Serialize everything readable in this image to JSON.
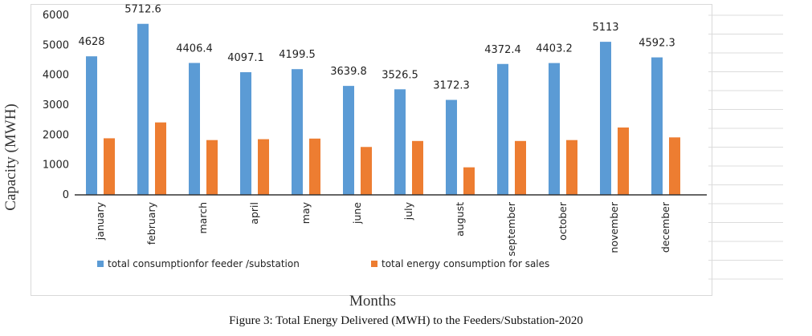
{
  "chart_data": {
    "type": "bar",
    "categories": [
      "january",
      "february",
      "march",
      "april",
      "may",
      "june",
      "july",
      "august",
      "september",
      "october",
      "november",
      "december"
    ],
    "series": [
      {
        "name": "total consumptionfor feeder /substation",
        "values": [
          4628,
          5712.6,
          4406.4,
          4097.1,
          4199.5,
          3639.8,
          3526.5,
          3172.3,
          4372.4,
          4403.2,
          5113,
          4592.3
        ],
        "color": "#5B9BD5"
      },
      {
        "name": "total energy consumption for sales",
        "values": [
          1890,
          2420,
          1830,
          1860,
          1880,
          1600,
          1800,
          920,
          1800,
          1830,
          2250,
          1920
        ],
        "color": "#ED7D31"
      }
    ],
    "data_labels": [
      "4628",
      "5712.6",
      "4406.4",
      "4097.1",
      "4199.5",
      "3639.8",
      "3526.5",
      "3172.3",
      "4372.4",
      "4403.2",
      "5113",
      "4592.3"
    ],
    "yticks": [
      "0",
      "1000",
      "2000",
      "3000",
      "4000",
      "5000",
      "6000"
    ],
    "ylim": [
      0,
      6000
    ],
    "ylabel": "Capacity (MWH)",
    "xlabel": "Months",
    "legend_position": "bottom"
  },
  "caption": "Figure 3: Total Energy Delivered (MWH) to the Feeders/Substation-2020"
}
